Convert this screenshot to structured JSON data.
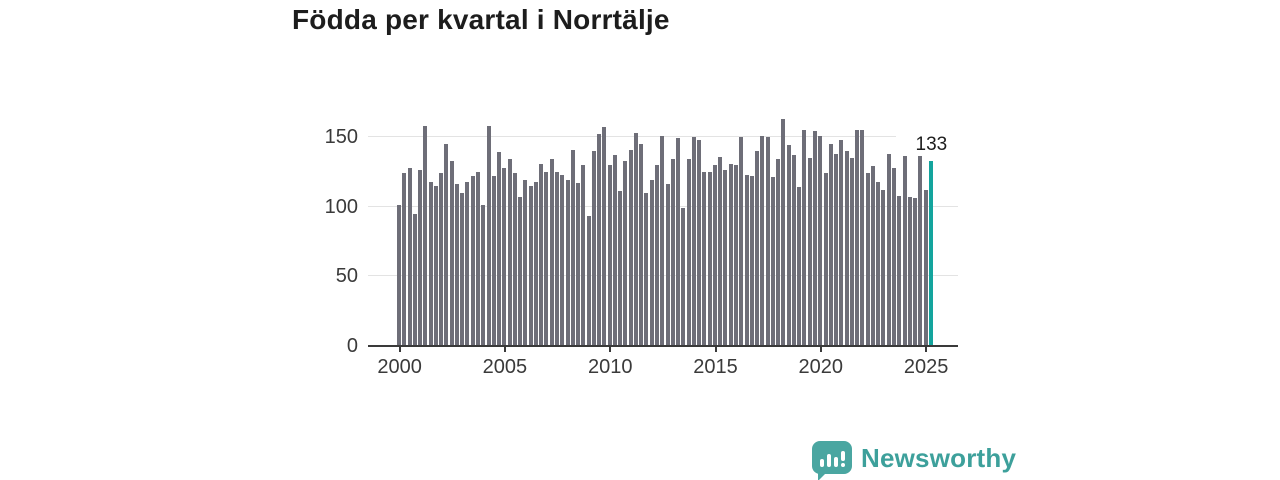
{
  "header": {
    "title": "Födda per kvartal i Norrtälje"
  },
  "chart_data": {
    "type": "bar",
    "title": "Födda per kvartal i Norrtälje",
    "x_unit": "quarter",
    "start_period": "2000 Q1",
    "end_period": "2025 Q2",
    "grid": "horizontal",
    "legend": "none",
    "ylim": [
      0,
      168
    ],
    "y_ticks": [
      0,
      50,
      100,
      150
    ],
    "x_tick_labels": [
      "2000",
      "2005",
      "2010",
      "2015",
      "2020",
      "2025"
    ],
    "x_tick_quarter_indices": [
      0,
      20,
      40,
      60,
      80,
      100
    ],
    "bar_color": "#6e6e78",
    "highlight_color": "#13a49d",
    "axis_color": "#3a3a3a",
    "grid_color": "#e3e3e3",
    "highlight_index": 101,
    "highlight_value_label": "133",
    "categories": [
      "2000 Q1",
      "2000 Q2",
      "2000 Q3",
      "2000 Q4",
      "2001 Q1",
      "2001 Q2",
      "2001 Q3",
      "2001 Q4",
      "2002 Q1",
      "2002 Q2",
      "2002 Q3",
      "2002 Q4",
      "2003 Q1",
      "2003 Q2",
      "2003 Q3",
      "2003 Q4",
      "2004 Q1",
      "2004 Q2",
      "2004 Q3",
      "2004 Q4",
      "2005 Q1",
      "2005 Q2",
      "2005 Q3",
      "2005 Q4",
      "2006 Q1",
      "2006 Q2",
      "2006 Q3",
      "2006 Q4",
      "2007 Q1",
      "2007 Q2",
      "2007 Q3",
      "2007 Q4",
      "2008 Q1",
      "2008 Q2",
      "2008 Q3",
      "2008 Q4",
      "2009 Q1",
      "2009 Q2",
      "2009 Q3",
      "2009 Q4",
      "2010 Q1",
      "2010 Q2",
      "2010 Q3",
      "2010 Q4",
      "2011 Q1",
      "2011 Q2",
      "2011 Q3",
      "2011 Q4",
      "2012 Q1",
      "2012 Q2",
      "2012 Q3",
      "2012 Q4",
      "2013 Q1",
      "2013 Q2",
      "2013 Q3",
      "2013 Q4",
      "2014 Q1",
      "2014 Q2",
      "2014 Q3",
      "2014 Q4",
      "2015 Q1",
      "2015 Q2",
      "2015 Q3",
      "2015 Q4",
      "2016 Q1",
      "2016 Q2",
      "2016 Q3",
      "2016 Q4",
      "2017 Q1",
      "2017 Q2",
      "2017 Q3",
      "2017 Q4",
      "2018 Q1",
      "2018 Q2",
      "2018 Q3",
      "2018 Q4",
      "2019 Q1",
      "2019 Q2",
      "2019 Q3",
      "2019 Q4",
      "2020 Q1",
      "2020 Q2",
      "2020 Q3",
      "2020 Q4",
      "2021 Q1",
      "2021 Q2",
      "2021 Q3",
      "2021 Q4",
      "2022 Q1",
      "2022 Q2",
      "2022 Q3",
      "2022 Q4",
      "2023 Q1",
      "2023 Q2",
      "2023 Q3",
      "2023 Q4",
      "2024 Q1",
      "2024 Q2",
      "2024 Q3",
      "2024 Q4",
      "2025 Q1",
      "2025 Q2"
    ],
    "values": [
      101,
      124,
      128,
      95,
      126,
      158,
      118,
      115,
      124,
      145,
      133,
      116,
      110,
      118,
      122,
      125,
      101,
      158,
      122,
      139,
      128,
      134,
      124,
      107,
      119,
      115,
      118,
      131,
      125,
      134,
      125,
      123,
      119,
      141,
      117,
      130,
      93,
      140,
      152,
      157,
      130,
      137,
      111,
      133,
      141,
      153,
      145,
      110,
      119,
      130,
      151,
      116,
      134,
      149,
      99,
      134,
      150,
      148,
      125,
      125,
      130,
      136,
      126,
      131,
      130,
      150,
      123,
      122,
      140,
      151,
      150,
      121,
      134,
      163,
      144,
      137,
      114,
      155,
      135,
      154,
      151,
      124,
      145,
      138,
      148,
      140,
      135,
      155,
      155,
      124,
      129,
      118,
      112,
      138,
      128,
      108,
      142,
      107,
      106,
      139,
      112,
      133
    ]
  },
  "footer": {
    "brand": "Newsworthy",
    "brand_color": "#3da09b",
    "logo_icon": "bar-chart-speech-bubble"
  }
}
